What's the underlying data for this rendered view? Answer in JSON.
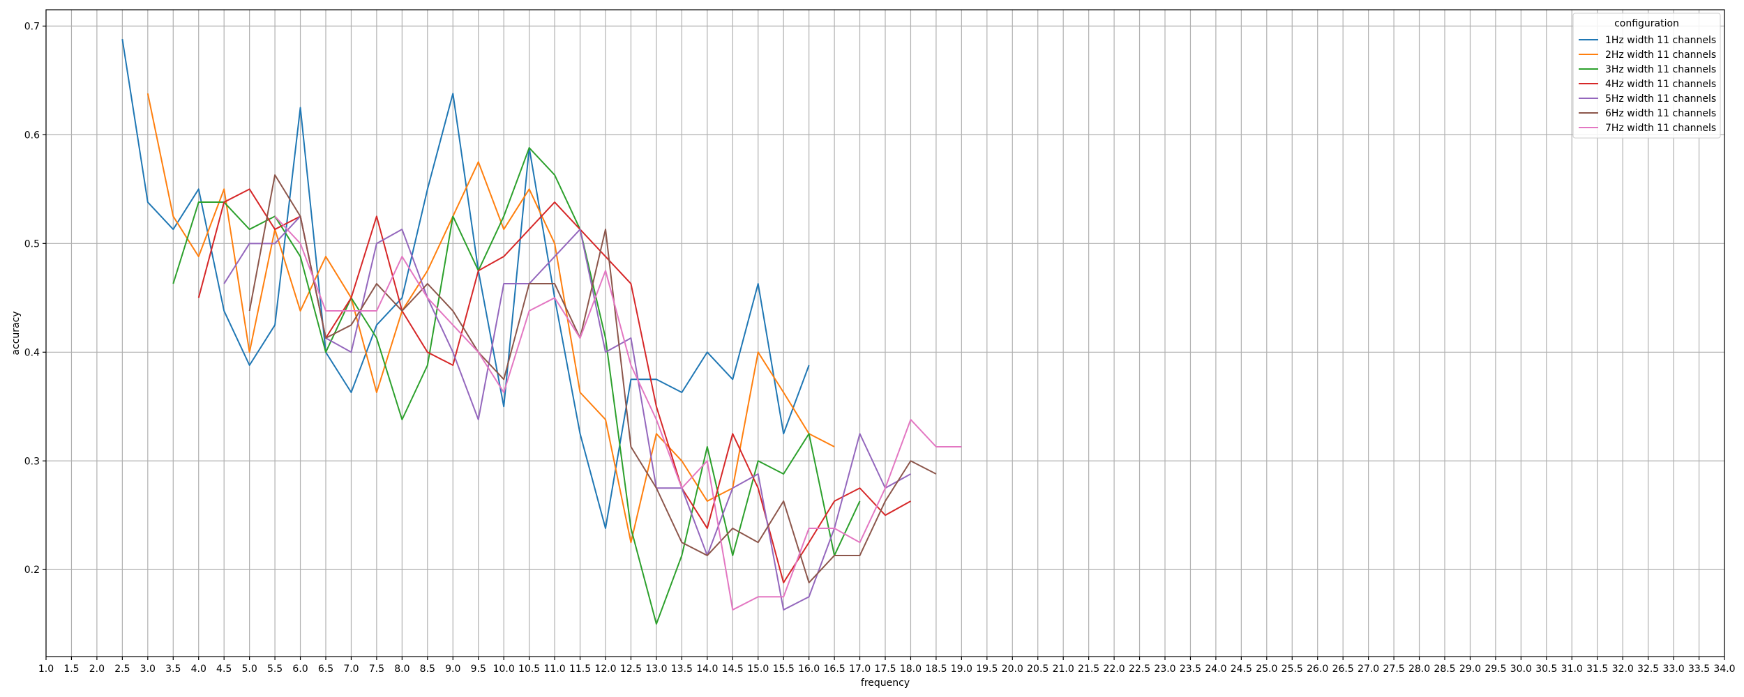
{
  "chart_data": {
    "type": "line",
    "title": "",
    "xlabel": "frequency",
    "ylabel": "accuracy",
    "xlim": [
      1.0,
      34.0
    ],
    "ylim": [
      0.12,
      0.715
    ],
    "xticks": [
      "1.0",
      "1.5",
      "2.0",
      "2.5",
      "3.0",
      "3.5",
      "4.0",
      "4.5",
      "5.0",
      "5.5",
      "6.0",
      "6.5",
      "7.0",
      "7.5",
      "8.0",
      "8.5",
      "9.0",
      "9.5",
      "10.0",
      "10.5",
      "11.0",
      "11.5",
      "12.0",
      "12.5",
      "13.0",
      "13.5",
      "14.0",
      "14.5",
      "15.0",
      "15.5",
      "16.0",
      "16.5",
      "17.0",
      "17.5",
      "18.0",
      "18.5",
      "19.0",
      "19.5",
      "20.0",
      "20.5",
      "21.0",
      "21.5",
      "22.0",
      "22.5",
      "23.0",
      "23.5",
      "24.0",
      "24.5",
      "25.0",
      "25.5",
      "26.0",
      "26.5",
      "27.0",
      "27.5",
      "28.0",
      "28.5",
      "29.0",
      "29.5",
      "30.0",
      "30.5",
      "31.0",
      "31.5",
      "32.0",
      "32.5",
      "33.0",
      "33.5",
      "34.0"
    ],
    "yticks": [
      "0.2",
      "0.3",
      "0.4",
      "0.5",
      "0.6",
      "0.7"
    ],
    "grid": true,
    "legend_title": "configuration",
    "legend_position": "top-right",
    "series": [
      {
        "name": "1Hz width 11 channels",
        "color": "#1f77b4",
        "x_start": 2.5,
        "values": [
          0.688,
          0.538,
          0.513,
          0.55,
          0.438,
          0.388,
          0.425,
          0.625,
          0.4,
          0.363,
          0.425,
          0.45,
          0.55,
          0.638,
          0.475,
          0.35,
          0.588,
          0.45,
          0.325,
          0.238,
          0.375,
          0.375,
          0.363,
          0.4,
          0.375,
          0.463,
          0.325,
          0.388
        ]
      },
      {
        "name": "2Hz width 11 channels",
        "color": "#ff7f0e",
        "x_start": 3.0,
        "values": [
          0.638,
          0.525,
          0.488,
          0.55,
          0.4,
          0.513,
          0.438,
          0.488,
          0.45,
          0.363,
          0.438,
          0.475,
          0.525,
          0.575,
          0.513,
          0.55,
          0.5,
          0.363,
          0.338,
          0.225,
          0.325,
          0.3,
          0.263,
          0.275,
          0.4,
          0.363,
          0.325,
          0.313
        ]
      },
      {
        "name": "3Hz width 11 channels",
        "color": "#2ca02c",
        "x_start": 3.5,
        "values": [
          0.463,
          0.538,
          0.538,
          0.513,
          0.525,
          0.488,
          0.4,
          0.45,
          0.413,
          0.338,
          0.388,
          0.525,
          0.475,
          0.525,
          0.588,
          0.563,
          0.513,
          0.413,
          0.238,
          0.15,
          0.213,
          0.313,
          0.213,
          0.3,
          0.288,
          0.325,
          0.213,
          0.263
        ]
      },
      {
        "name": "4Hz width 11 channels",
        "color": "#d62728",
        "x_start": 4.0,
        "values": [
          0.45,
          0.538,
          0.55,
          0.513,
          0.525,
          0.413,
          0.45,
          0.525,
          0.438,
          0.4,
          0.388,
          0.475,
          0.488,
          0.513,
          0.538,
          0.513,
          0.488,
          0.463,
          0.35,
          0.275,
          0.238,
          0.325,
          0.275,
          0.188,
          0.225,
          0.263,
          0.275,
          0.25,
          0.263
        ]
      },
      {
        "name": "5Hz width 11 channels",
        "color": "#9467bd",
        "x_start": 4.5,
        "values": [
          0.463,
          0.5,
          0.5,
          0.525,
          0.413,
          0.4,
          0.5,
          0.513,
          0.45,
          0.4,
          0.338,
          0.463,
          0.463,
          0.488,
          0.513,
          0.4,
          0.413,
          0.275,
          0.275,
          0.213,
          0.275,
          0.288,
          0.163,
          0.175,
          0.238,
          0.325,
          0.275,
          0.288
        ]
      },
      {
        "name": "6Hz width 11 channels",
        "color": "#8c564b",
        "x_start": 5.0,
        "values": [
          0.438,
          0.563,
          0.525,
          0.413,
          0.425,
          0.463,
          0.438,
          0.463,
          0.438,
          0.4,
          0.375,
          0.463,
          0.463,
          0.413,
          0.513,
          0.313,
          0.275,
          0.225,
          0.213,
          0.238,
          0.225,
          0.263,
          0.188,
          0.213,
          0.213,
          0.263,
          0.3,
          0.288
        ]
      },
      {
        "name": "7Hz width 11 channels",
        "color": "#e377c2",
        "x_start": 5.5,
        "values": [
          0.525,
          0.5,
          0.438,
          0.438,
          0.438,
          0.488,
          0.45,
          0.425,
          0.4,
          0.363,
          0.438,
          0.45,
          0.413,
          0.475,
          0.388,
          0.338,
          0.275,
          0.3,
          0.163,
          0.175,
          0.175,
          0.238,
          0.238,
          0.225,
          0.275,
          0.338,
          0.313,
          0.313
        ]
      }
    ]
  }
}
